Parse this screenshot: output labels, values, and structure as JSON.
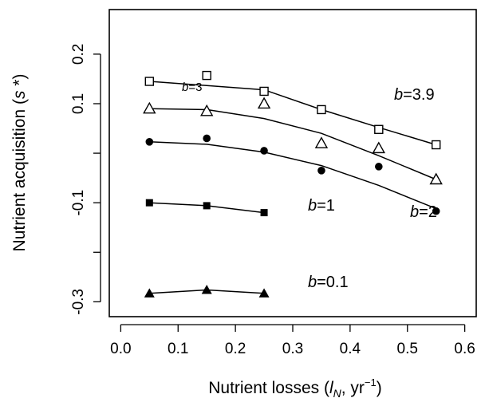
{
  "chart_data": {
    "type": "scatter",
    "title": "",
    "xlabel_parts": [
      "Nutrient losses (",
      "l",
      "N",
      ", yr",
      "−1",
      ")"
    ],
    "ylabel_parts": [
      "Nutrient acquisition (",
      "s",
      " *)"
    ],
    "xlim": [
      -0.02,
      0.62
    ],
    "ylim": [
      -0.33,
      0.29
    ],
    "xticks": [
      0.0,
      0.1,
      0.2,
      0.3,
      0.4,
      0.5,
      0.6
    ],
    "xtick_labels": [
      "0.0",
      "0.1",
      "0.2",
      "0.3",
      "0.4",
      "0.5",
      "0.6"
    ],
    "yticks": [
      -0.3,
      -0.2,
      -0.1,
      0.0,
      0.1,
      0.2
    ],
    "ytick_labels": [
      "-0.3",
      "",
      "-0.1",
      "",
      "0.1",
      "0.2"
    ],
    "grid": false,
    "series": [
      {
        "name": "b=3.9",
        "label_b": "b",
        "label_value": "=3.9",
        "marker": "open-square",
        "points": [
          [
            0.05,
            0.145
          ],
          [
            0.15,
            0.157
          ],
          [
            0.25,
            0.125
          ],
          [
            0.35,
            0.088
          ],
          [
            0.45,
            0.048
          ],
          [
            0.55,
            0.017
          ]
        ],
        "fit": [
          [
            0.05,
            0.145
          ],
          [
            0.25,
            0.128
          ],
          [
            0.35,
            0.088
          ],
          [
            0.45,
            0.052
          ],
          [
            0.55,
            0.017
          ]
        ]
      },
      {
        "name": "b=3",
        "label_b": "b",
        "label_value": "=3",
        "marker": "open-triangle",
        "points": [
          [
            0.05,
            0.09
          ],
          [
            0.15,
            0.085
          ],
          [
            0.25,
            0.1
          ],
          [
            0.35,
            0.02
          ],
          [
            0.45,
            0.01
          ],
          [
            0.55,
            -0.053
          ]
        ],
        "fit": [
          [
            0.05,
            0.09
          ],
          [
            0.15,
            0.088
          ],
          [
            0.25,
            0.07
          ],
          [
            0.35,
            0.04
          ],
          [
            0.45,
            -0.005
          ],
          [
            0.55,
            -0.053
          ]
        ]
      },
      {
        "name": "b=2",
        "label_b": "b",
        "label_value": "=2",
        "marker": "filled-circle",
        "points": [
          [
            0.05,
            0.023
          ],
          [
            0.15,
            0.03
          ],
          [
            0.25,
            0.005
          ],
          [
            0.35,
            -0.035
          ],
          [
            0.45,
            -0.027
          ],
          [
            0.55,
            -0.117
          ]
        ],
        "fit": [
          [
            0.05,
            0.023
          ],
          [
            0.15,
            0.018
          ],
          [
            0.25,
            0.002
          ],
          [
            0.35,
            -0.025
          ],
          [
            0.45,
            -0.065
          ],
          [
            0.55,
            -0.112
          ]
        ]
      },
      {
        "name": "b=1",
        "label_b": "b",
        "label_value": "=1",
        "marker": "filled-square",
        "points": [
          [
            0.05,
            -0.1
          ],
          [
            0.15,
            -0.106
          ],
          [
            0.25,
            -0.12
          ]
        ],
        "fit": [
          [
            0.05,
            -0.1
          ],
          [
            0.15,
            -0.106
          ],
          [
            0.25,
            -0.12
          ]
        ]
      },
      {
        "name": "b=0.1",
        "label_b": "b",
        "label_value": "=0.1",
        "marker": "filled-triangle",
        "points": [
          [
            0.05,
            -0.283
          ],
          [
            0.15,
            -0.276
          ],
          [
            0.25,
            -0.283
          ]
        ],
        "fit": [
          [
            0.05,
            -0.283
          ],
          [
            0.15,
            -0.276
          ],
          [
            0.25,
            -0.283
          ]
        ]
      }
    ]
  }
}
